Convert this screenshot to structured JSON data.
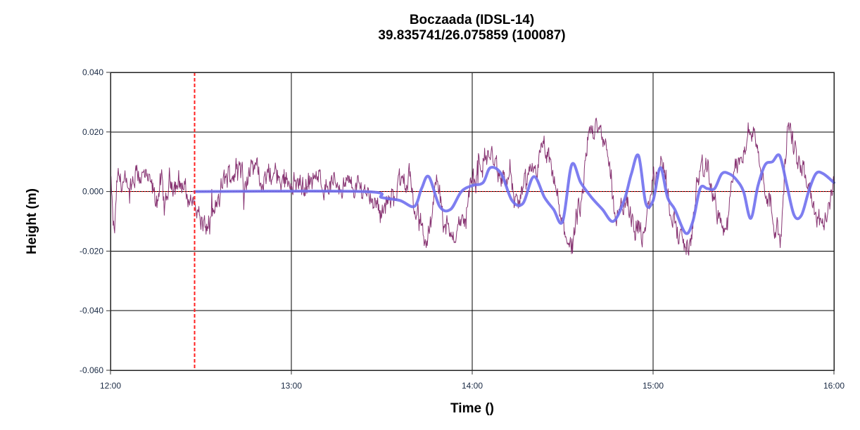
{
  "chart_data": {
    "type": "line",
    "title": "Boczaada (IDSL-14)",
    "subtitle": "39.835741/26.075859 (100087)",
    "xlabel": "Time ()",
    "ylabel": "Height (m)",
    "x_ticks": [
      "12:00",
      "13:00",
      "14:00",
      "15:00",
      "16:00"
    ],
    "y_ticks": [
      "0.040",
      "0.020",
      "0.000",
      "-0.020",
      "-0.040",
      "-0.060"
    ],
    "xlim_hours": [
      12.0,
      16.0
    ],
    "ylim": [
      -0.06,
      0.04
    ],
    "grid": true,
    "legend": "none",
    "reference_line": {
      "y": 0.0,
      "color": "#ff0000",
      "style": "dashed"
    },
    "marker_line": {
      "x_time": "12:28",
      "x_hours": 12.465,
      "color": "#ff2020",
      "style": "dashed"
    },
    "series": [
      {
        "name": "raw",
        "color": "#7b1f64",
        "width": 1,
        "anchors_hours": [
          12.0,
          12.02,
          12.04,
          12.07,
          12.1,
          12.12,
          12.15,
          12.18,
          12.22,
          12.25,
          12.28,
          12.3,
          12.33,
          12.36,
          12.4,
          12.43,
          12.47,
          12.5,
          12.53,
          12.57,
          12.6,
          12.63,
          12.67,
          12.7,
          12.75,
          12.8,
          12.85,
          12.9,
          12.95,
          13.0,
          13.05,
          13.1,
          13.15,
          13.2,
          13.25,
          13.3,
          13.35,
          13.4,
          13.45,
          13.5,
          13.55,
          13.6,
          13.65,
          13.7,
          13.75,
          13.8,
          13.85,
          13.9,
          13.95,
          14.0,
          14.05,
          14.1,
          14.15,
          14.2,
          14.25,
          14.3,
          14.35,
          14.4,
          14.45,
          14.5,
          14.55,
          14.6,
          14.65,
          14.7,
          14.75,
          14.8,
          14.85,
          14.9,
          14.95,
          15.0,
          15.05,
          15.1,
          15.15,
          15.2,
          15.25,
          15.3,
          15.35,
          15.4,
          15.45,
          15.5,
          15.55,
          15.6,
          15.65,
          15.7,
          15.75,
          15.8,
          15.85,
          15.9,
          15.95,
          16.0
        ],
        "anchors_values": [
          0.002,
          -0.014,
          0.004,
          0.003,
          -0.002,
          0.001,
          0.006,
          0.005,
          0.002,
          -0.003,
          0.003,
          -0.006,
          0.004,
          0.003,
          0.002,
          -0.002,
          -0.004,
          -0.01,
          -0.012,
          -0.008,
          -0.003,
          0.004,
          0.006,
          0.008,
          0.005,
          0.008,
          0.004,
          0.006,
          0.004,
          0.004,
          0.002,
          0.003,
          0.004,
          0.002,
          0.003,
          0.002,
          0.002,
          0.001,
          -0.002,
          -0.006,
          -0.003,
          0.003,
          0.005,
          -0.01,
          -0.017,
          0.004,
          -0.012,
          -0.014,
          -0.01,
          0.002,
          0.01,
          0.012,
          0.006,
          0.003,
          -0.004,
          0.002,
          0.008,
          0.014,
          0.004,
          -0.012,
          -0.018,
          -0.005,
          0.02,
          0.024,
          0.01,
          -0.008,
          -0.004,
          -0.01,
          -0.016,
          0.004,
          0.01,
          -0.006,
          -0.016,
          -0.019,
          0.004,
          0.008,
          -0.006,
          -0.014,
          0.006,
          0.016,
          0.022,
          0.006,
          -0.004,
          -0.016,
          0.022,
          0.01,
          0.004,
          -0.008,
          -0.012,
          0.004
        ]
      },
      {
        "name": "smoothed",
        "color": "#7070ee",
        "width": 4,
        "x_hours": [
          12.465,
          13.4,
          13.5,
          13.6,
          13.68,
          13.72,
          13.76,
          13.82,
          13.88,
          13.94,
          14.0,
          14.06,
          14.1,
          14.16,
          14.22,
          14.28,
          14.34,
          14.4,
          14.45,
          14.5,
          14.55,
          14.6,
          14.66,
          14.72,
          14.78,
          14.84,
          14.88,
          14.92,
          14.96,
          15.0,
          15.04,
          15.08,
          15.12,
          15.18,
          15.22,
          15.26,
          15.3,
          15.34,
          15.38,
          15.42,
          15.46,
          15.5,
          15.54,
          15.58,
          15.62,
          15.66,
          15.7,
          15.74,
          15.78,
          15.82,
          15.86,
          15.9,
          15.94,
          16.0
        ],
        "values": [
          0.0,
          0.0,
          -0.002,
          -0.003,
          -0.005,
          0.001,
          0.005,
          -0.005,
          -0.006,
          0.0,
          0.002,
          0.003,
          0.008,
          0.006,
          -0.003,
          -0.004,
          0.005,
          -0.002,
          -0.006,
          -0.01,
          0.009,
          0.003,
          -0.002,
          -0.006,
          -0.01,
          -0.003,
          0.006,
          0.012,
          -0.004,
          -0.003,
          0.008,
          -0.002,
          -0.006,
          -0.014,
          -0.01,
          0.001,
          0.001,
          0.001,
          0.006,
          0.006,
          0.004,
          0.0,
          -0.009,
          0.002,
          0.009,
          0.01,
          0.012,
          0.002,
          -0.008,
          -0.008,
          0.0,
          0.006,
          0.006,
          0.003
        ]
      }
    ]
  }
}
